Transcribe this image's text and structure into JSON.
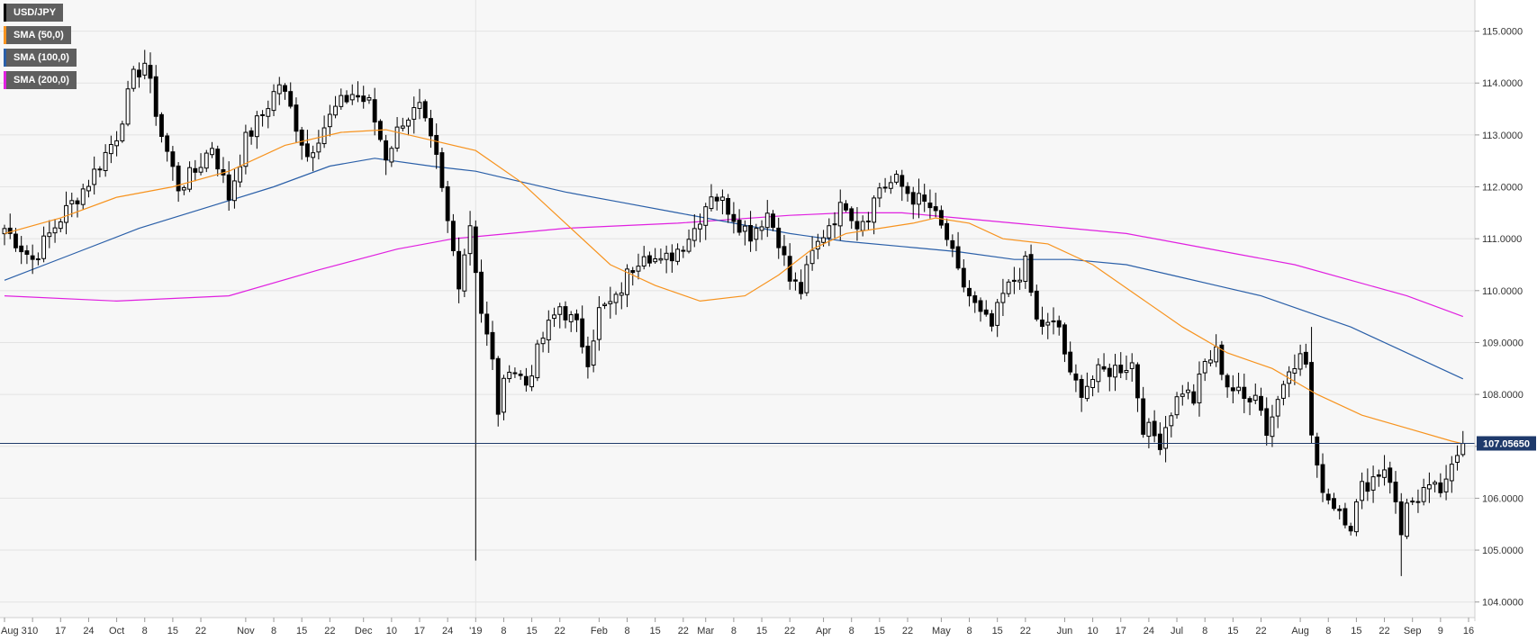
{
  "legend": [
    {
      "label": "USD/JPY",
      "color": "#000000"
    },
    {
      "label": "SMA (50,0)",
      "color": "#f7931e"
    },
    {
      "label": "SMA (100,0)",
      "color": "#2a5fa8"
    },
    {
      "label": "SMA (200,0)",
      "color": "#e020e0"
    }
  ],
  "price_tag": "107.05650",
  "colors": {
    "background": "#f7f7f7",
    "grid": "#e3e3e3",
    "candle_up": "#ffffff",
    "candle_down": "#000000",
    "sma50": "#f7931e",
    "sma100": "#2a5fa8",
    "sma200": "#e020e0",
    "price_line": "#1f3a6b",
    "price_tag_bg": "#1f3a6b"
  },
  "chart_data": {
    "type": "candlestick",
    "symbol": "USD/JPY",
    "ylim": [
      103.7,
      115.6
    ],
    "y_ticks": [
      {
        "value": 104,
        "label": "104.0000"
      },
      {
        "value": 105,
        "label": "105.0000"
      },
      {
        "value": 106,
        "label": "106.0000"
      },
      {
        "value": 107,
        "label": "107.0000"
      },
      {
        "value": 108,
        "label": "108.0000"
      },
      {
        "value": 109,
        "label": "109.0000"
      },
      {
        "value": 110,
        "label": "110.0000"
      },
      {
        "value": 111,
        "label": "111.0000"
      },
      {
        "value": 112,
        "label": "112.0000"
      },
      {
        "value": 113,
        "label": "113.0000"
      },
      {
        "value": 114,
        "label": "114.0000"
      },
      {
        "value": 115,
        "label": "115.0000"
      }
    ],
    "x_ticks": [
      {
        "index": 0,
        "label": "Aug 3"
      },
      {
        "index": 5,
        "label": "10"
      },
      {
        "index": 10,
        "label": "17"
      },
      {
        "index": 15,
        "label": "24"
      },
      {
        "index": 20,
        "label": "Oct"
      },
      {
        "index": 25,
        "label": "8"
      },
      {
        "index": 30,
        "label": "15"
      },
      {
        "index": 35,
        "label": "22"
      },
      {
        "index": 43,
        "label": "Nov"
      },
      {
        "index": 48,
        "label": "8"
      },
      {
        "index": 53,
        "label": "15"
      },
      {
        "index": 58,
        "label": "22"
      },
      {
        "index": 64,
        "label": "Dec"
      },
      {
        "index": 69,
        "label": "10"
      },
      {
        "index": 74,
        "label": "17"
      },
      {
        "index": 79,
        "label": "24"
      },
      {
        "index": 84,
        "label": "'19"
      },
      {
        "index": 89,
        "label": "8"
      },
      {
        "index": 94,
        "label": "15"
      },
      {
        "index": 99,
        "label": "22"
      },
      {
        "index": 106,
        "label": "Feb"
      },
      {
        "index": 111,
        "label": "8"
      },
      {
        "index": 116,
        "label": "15"
      },
      {
        "index": 121,
        "label": "22"
      },
      {
        "index": 125,
        "label": "Mar"
      },
      {
        "index": 130,
        "label": "8"
      },
      {
        "index": 135,
        "label": "15"
      },
      {
        "index": 140,
        "label": "22"
      },
      {
        "index": 146,
        "label": "Apr"
      },
      {
        "index": 151,
        "label": "8"
      },
      {
        "index": 156,
        "label": "15"
      },
      {
        "index": 161,
        "label": "22"
      },
      {
        "index": 167,
        "label": "May"
      },
      {
        "index": 172,
        "label": "8"
      },
      {
        "index": 177,
        "label": "15"
      },
      {
        "index": 182,
        "label": "22"
      },
      {
        "index": 189,
        "label": "Jun"
      },
      {
        "index": 194,
        "label": "10"
      },
      {
        "index": 199,
        "label": "17"
      },
      {
        "index": 204,
        "label": "24"
      },
      {
        "index": 209,
        "label": "Jul"
      },
      {
        "index": 214,
        "label": "8"
      },
      {
        "index": 219,
        "label": "15"
      },
      {
        "index": 224,
        "label": "22"
      },
      {
        "index": 231,
        "label": "Aug"
      },
      {
        "index": 236,
        "label": "8"
      },
      {
        "index": 241,
        "label": "15"
      },
      {
        "index": 246,
        "label": "22"
      },
      {
        "index": 251,
        "label": "Sep"
      },
      {
        "index": 256,
        "label": "9"
      },
      {
        "index": 261,
        "label": "16"
      }
    ],
    "last_price": 107.0565,
    "anchors": [
      [
        0,
        111.2
      ],
      [
        5,
        110.6
      ],
      [
        10,
        111.4
      ],
      [
        15,
        112.1
      ],
      [
        20,
        113.0
      ],
      [
        23,
        114.1
      ],
      [
        25,
        114.4
      ],
      [
        28,
        113.0
      ],
      [
        31,
        112.0
      ],
      [
        34,
        112.3
      ],
      [
        37,
        112.8
      ],
      [
        40,
        111.8
      ],
      [
        43,
        112.9
      ],
      [
        46,
        113.4
      ],
      [
        49,
        114.0
      ],
      [
        51,
        113.5
      ],
      [
        54,
        112.6
      ],
      [
        56,
        113.0
      ],
      [
        59,
        113.5
      ],
      [
        62,
        113.8
      ],
      [
        65,
        113.6
      ],
      [
        68,
        112.6
      ],
      [
        71,
        113.3
      ],
      [
        74,
        113.5
      ],
      [
        77,
        112.5
      ],
      [
        79,
        111.3
      ],
      [
        81,
        110.2
      ],
      [
        83,
        111.3
      ],
      [
        85,
        109.6
      ],
      [
        87,
        108.6
      ],
      [
        88,
        107.7
      ],
      [
        90,
        108.6
      ],
      [
        93,
        108.2
      ],
      [
        96,
        109.1
      ],
      [
        99,
        109.7
      ],
      [
        102,
        109.3
      ],
      [
        104,
        108.7
      ],
      [
        106,
        109.6
      ],
      [
        109,
        109.8
      ],
      [
        111,
        110.3
      ],
      [
        114,
        110.8
      ],
      [
        117,
        110.5
      ],
      [
        120,
        110.8
      ],
      [
        123,
        111.2
      ],
      [
        126,
        111.9
      ],
      [
        129,
        111.6
      ],
      [
        131,
        111.3
      ],
      [
        133,
        111.1
      ],
      [
        136,
        111.5
      ],
      [
        138,
        111.0
      ],
      [
        140,
        110.2
      ],
      [
        142,
        110.0
      ],
      [
        144,
        110.7
      ],
      [
        147,
        111.3
      ],
      [
        150,
        111.7
      ],
      [
        152,
        111.3
      ],
      [
        154,
        111.5
      ],
      [
        156,
        112.0
      ],
      [
        159,
        112.1
      ],
      [
        162,
        111.8
      ],
      [
        165,
        111.6
      ],
      [
        168,
        111.0
      ],
      [
        170,
        110.3
      ],
      [
        172,
        109.9
      ],
      [
        174,
        109.5
      ],
      [
        176,
        109.3
      ],
      [
        178,
        109.9
      ],
      [
        180,
        110.2
      ],
      [
        182,
        110.5
      ],
      [
        184,
        109.4
      ],
      [
        186,
        109.3
      ],
      [
        188,
        109.3
      ],
      [
        190,
        108.3
      ],
      [
        192,
        108.1
      ],
      [
        195,
        108.4
      ],
      [
        198,
        108.5
      ],
      [
        201,
        108.6
      ],
      [
        203,
        107.4
      ],
      [
        206,
        107.1
      ],
      [
        208,
        107.7
      ],
      [
        210,
        108.1
      ],
      [
        212,
        107.9
      ],
      [
        214,
        108.6
      ],
      [
        216,
        108.8
      ],
      [
        218,
        108.2
      ],
      [
        221,
        107.9
      ],
      [
        223,
        108.1
      ],
      [
        225,
        107.3
      ],
      [
        227,
        107.9
      ],
      [
        229,
        108.6
      ],
      [
        231,
        108.7
      ],
      [
        232,
        108.6
      ],
      [
        233,
        107.2
      ],
      [
        234,
        106.5
      ],
      [
        236,
        106.0
      ],
      [
        238,
        105.8
      ],
      [
        240,
        105.5
      ],
      [
        242,
        106.2
      ],
      [
        244,
        106.4
      ],
      [
        246,
        106.6
      ],
      [
        247,
        106.4
      ],
      [
        249,
        105.3
      ],
      [
        250,
        106.0
      ],
      [
        252,
        105.8
      ],
      [
        254,
        106.3
      ],
      [
        256,
        106.0
      ],
      [
        258,
        106.8
      ],
      [
        260,
        107.05
      ]
    ],
    "spikes": [
      [
        84,
        "low",
        104.8
      ],
      [
        233,
        "high",
        109.3
      ],
      [
        249,
        "low",
        104.5
      ]
    ],
    "sma50": [
      [
        0,
        111.1
      ],
      [
        10,
        111.4
      ],
      [
        20,
        111.8
      ],
      [
        30,
        112.0
      ],
      [
        40,
        112.3
      ],
      [
        50,
        112.8
      ],
      [
        60,
        113.05
      ],
      [
        68,
        113.1
      ],
      [
        76,
        112.9
      ],
      [
        84,
        112.7
      ],
      [
        92,
        112.1
      ],
      [
        100,
        111.3
      ],
      [
        108,
        110.5
      ],
      [
        116,
        110.1
      ],
      [
        124,
        109.8
      ],
      [
        132,
        109.9
      ],
      [
        138,
        110.3
      ],
      [
        144,
        110.8
      ],
      [
        150,
        111.1
      ],
      [
        156,
        111.2
      ],
      [
        162,
        111.3
      ],
      [
        166,
        111.4
      ],
      [
        172,
        111.3
      ],
      [
        178,
        111.0
      ],
      [
        186,
        110.9
      ],
      [
        194,
        110.5
      ],
      [
        202,
        109.9
      ],
      [
        210,
        109.3
      ],
      [
        218,
        108.8
      ],
      [
        226,
        108.5
      ],
      [
        234,
        108.0
      ],
      [
        242,
        107.6
      ],
      [
        250,
        107.35
      ],
      [
        258,
        107.1
      ],
      [
        260,
        107.05
      ]
    ],
    "sma100": [
      [
        0,
        110.2
      ],
      [
        12,
        110.7
      ],
      [
        24,
        111.2
      ],
      [
        36,
        111.6
      ],
      [
        48,
        112.0
      ],
      [
        58,
        112.4
      ],
      [
        66,
        112.55
      ],
      [
        76,
        112.4
      ],
      [
        84,
        112.3
      ],
      [
        92,
        112.1
      ],
      [
        100,
        111.9
      ],
      [
        110,
        111.7
      ],
      [
        120,
        111.5
      ],
      [
        130,
        111.3
      ],
      [
        140,
        111.1
      ],
      [
        150,
        110.95
      ],
      [
        160,
        110.85
      ],
      [
        170,
        110.75
      ],
      [
        180,
        110.6
      ],
      [
        190,
        110.6
      ],
      [
        200,
        110.5
      ],
      [
        208,
        110.3
      ],
      [
        216,
        110.1
      ],
      [
        224,
        109.9
      ],
      [
        232,
        109.6
      ],
      [
        240,
        109.3
      ],
      [
        248,
        108.9
      ],
      [
        256,
        108.5
      ],
      [
        260,
        108.3
      ]
    ],
    "sma200": [
      [
        0,
        109.9
      ],
      [
        20,
        109.8
      ],
      [
        40,
        109.9
      ],
      [
        56,
        110.4
      ],
      [
        70,
        110.8
      ],
      [
        80,
        111.0
      ],
      [
        90,
        111.1
      ],
      [
        100,
        111.2
      ],
      [
        120,
        111.3
      ],
      [
        140,
        111.45
      ],
      [
        150,
        111.5
      ],
      [
        160,
        111.5
      ],
      [
        170,
        111.4
      ],
      [
        180,
        111.3
      ],
      [
        190,
        111.2
      ],
      [
        200,
        111.1
      ],
      [
        210,
        110.9
      ],
      [
        220,
        110.7
      ],
      [
        230,
        110.5
      ],
      [
        240,
        110.2
      ],
      [
        250,
        109.9
      ],
      [
        260,
        109.5
      ]
    ]
  }
}
